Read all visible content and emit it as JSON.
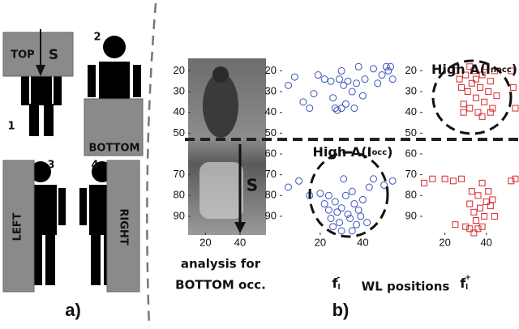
{
  "panel_a": {
    "caption": "a)",
    "icons": [
      {
        "number": "1",
        "label": "TOP",
        "arrow": "S"
      },
      {
        "number": "2",
        "label": "BOTTOM"
      },
      {
        "number": "3",
        "label": "LEFT"
      },
      {
        "number": "4",
        "label": "RIGHT"
      }
    ]
  },
  "panel_b": {
    "caption": "b)",
    "shared_xlabel": "WL positions",
    "image_caption": [
      "analysis for",
      "BOTTOM occ."
    ]
  },
  "chart_data": [
    {
      "type": "image",
      "arrow_label": "S",
      "xlim": [
        10,
        55
      ],
      "ylim": [
        14,
        99
      ],
      "y_inverted": true,
      "xticks": [
        20,
        40
      ],
      "yticks": [
        20,
        30,
        40,
        50,
        70,
        80,
        90
      ],
      "divider_y": 53
    },
    {
      "type": "scatter",
      "marker": "circle",
      "color": "#3a56b8",
      "xlim": [
        1,
        57
      ],
      "ylim": [
        14,
        99
      ],
      "y_inverted": true,
      "xticks": [
        20,
        40
      ],
      "yticks": [
        20,
        30,
        40,
        50,
        60,
        70,
        80,
        90
      ],
      "xlabel": {
        "base": "f",
        "sub": "l",
        "sup": "-"
      },
      "annotation": {
        "text": "High A(I",
        "sub": "occ",
        "end": ")"
      },
      "x": [
        5,
        8,
        12,
        17,
        19,
        22,
        25,
        26,
        27,
        29,
        30,
        31,
        32,
        33,
        35,
        36,
        37,
        40,
        41,
        38,
        45,
        47,
        49,
        51,
        52,
        53,
        54,
        15,
        28,
        30,
        5,
        10,
        15,
        20,
        22,
        24,
        25,
        26,
        27,
        28,
        29,
        30,
        31,
        32,
        33,
        34,
        35,
        36,
        37,
        38,
        39,
        40,
        42,
        43,
        45,
        50,
        54,
        30,
        35,
        24
      ],
      "y": [
        27,
        23,
        35,
        31,
        22,
        24,
        25,
        33,
        38,
        24,
        20,
        27,
        36,
        25,
        30,
        38,
        26,
        32,
        24,
        18,
        19,
        26,
        22,
        18,
        20,
        18,
        24,
        38,
        39,
        38,
        76,
        73,
        80,
        79,
        84,
        87,
        91,
        95,
        83,
        88,
        93,
        86,
        72,
        80,
        89,
        91,
        78,
        84,
        94,
        87,
        90,
        82,
        93,
        76,
        72,
        75,
        73,
        97,
        97,
        80
      ]
    },
    {
      "type": "scatter",
      "marker": "square",
      "color": "#d42a2a",
      "xlim": [
        8,
        55
      ],
      "ylim": [
        14,
        99
      ],
      "y_inverted": true,
      "xticks": [
        20,
        40
      ],
      "yticks": [
        20,
        30,
        40,
        50,
        60,
        70,
        80,
        90
      ],
      "xlabel": {
        "base": "f",
        "sub": "l",
        "sup": "+"
      },
      "annotation": {
        "text": "High A(I",
        "sub": "nocc",
        "end": ")"
      },
      "x": [
        25,
        27,
        28,
        29,
        30,
        31,
        32,
        33,
        34,
        35,
        36,
        37,
        38,
        39,
        40,
        41,
        42,
        43,
        44,
        45,
        52,
        53,
        54,
        32,
        38,
        42,
        29,
        35,
        10,
        14,
        20,
        24,
        28,
        32,
        33,
        34,
        35,
        36,
        37,
        38,
        39,
        40,
        41,
        42,
        43,
        44,
        30,
        32,
        36,
        38,
        52,
        54,
        25,
        34
      ],
      "y": [
        20,
        24,
        28,
        36,
        22,
        30,
        38,
        26,
        20,
        33,
        40,
        28,
        22,
        35,
        18,
        30,
        25,
        38,
        20,
        32,
        20,
        28,
        38,
        18,
        42,
        40,
        40,
        24,
        74,
        72,
        72,
        73,
        72,
        84,
        78,
        88,
        92,
        80,
        86,
        74,
        90,
        83,
        78,
        85,
        82,
        90,
        95,
        96,
        96,
        95,
        73,
        72,
        94,
        98
      ]
    }
  ]
}
